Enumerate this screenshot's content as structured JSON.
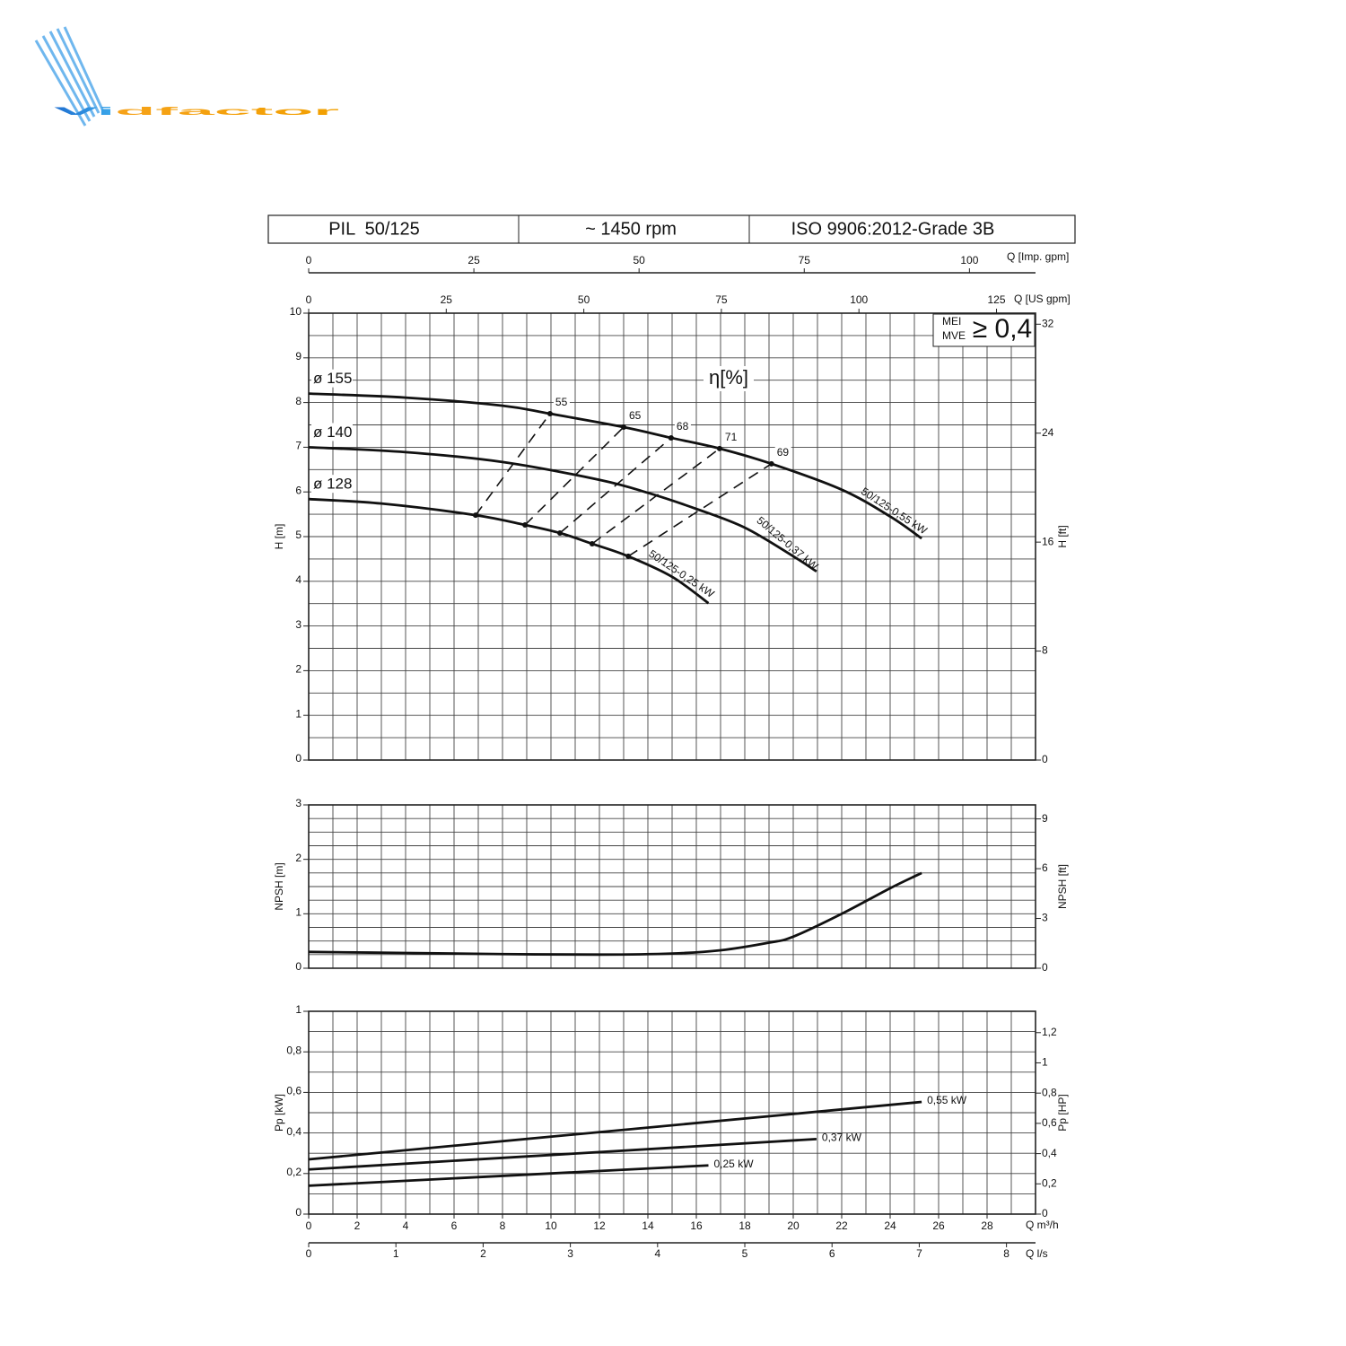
{
  "logo": "Vidfactor",
  "header": [
    "PIL  50/125",
    "~ 1450 rpm",
    "ISO 9906:2012-Grade 3B"
  ],
  "mei": {
    "labels": [
      "MEI",
      "MVE"
    ],
    "value": "≥ 0,4"
  },
  "flow_axes": [
    {
      "label": "Q [Imp. gpm]",
      "lim": [
        0,
        110.0
      ],
      "ticks": [
        0,
        25,
        50,
        75,
        100
      ]
    },
    {
      "label": "Q [US gpm]",
      "lim": [
        0,
        132.09
      ],
      "ticks": [
        0,
        25,
        50,
        75,
        100,
        125
      ]
    },
    {
      "label": "Q l/s",
      "lim": [
        0,
        8.333
      ],
      "ticks": [
        0,
        1,
        2,
        3,
        4,
        5,
        6,
        7,
        8
      ]
    }
  ],
  "chart_data": [
    {
      "type": "line",
      "ylabel": "H [m]",
      "y2label": "H [ft]",
      "xlim": [
        0,
        30
      ],
      "ylim": [
        0,
        10
      ],
      "yticks": [
        0,
        1,
        2,
        3,
        4,
        5,
        6,
        7,
        8,
        9,
        10
      ],
      "y2lim": [
        0,
        32.81
      ],
      "y2ticks": [
        0,
        8,
        16,
        24,
        32
      ],
      "xgrid": [
        0,
        1,
        2,
        3,
        4,
        5,
        6,
        7,
        8,
        9,
        10,
        11,
        12,
        13,
        14,
        15,
        16,
        17,
        18,
        19,
        20,
        21,
        22,
        23,
        24,
        25,
        26,
        27,
        28,
        29,
        30
      ],
      "ygrid": [
        0,
        0.5,
        1,
        1.5,
        2,
        2.5,
        3,
        3.5,
        4,
        4.5,
        5,
        5.5,
        6,
        6.5,
        7,
        7.5,
        8,
        8.5,
        9,
        9.5,
        10
      ],
      "series": [
        {
          "name": "50/125-0,55 kW",
          "diameter": "ø 155",
          "color": "#111111",
          "x": [
            0,
            4,
            8,
            9.96,
            13,
            14.96,
            16.96,
            19.1,
            22,
            24,
            25.3
          ],
          "values": [
            8.2,
            8.11,
            7.93,
            7.75,
            7.45,
            7.21,
            6.97,
            6.63,
            6.05,
            5.45,
            4.96
          ]
        },
        {
          "name": "50/125-0,37 kW",
          "diameter": "ø 140",
          "color": "#111111",
          "x": [
            0,
            4,
            8,
            12,
            14,
            16,
            18,
            20,
            20.96
          ],
          "values": [
            7.0,
            6.89,
            6.67,
            6.27,
            5.98,
            5.62,
            5.2,
            4.56,
            4.22
          ]
        },
        {
          "name": "50/125-0,25 kW",
          "diameter": "ø 128",
          "color": "#111111",
          "x": [
            0,
            3,
            6.89,
            8.93,
            10.37,
            11.7,
            13.19,
            15,
            16.5
          ],
          "values": [
            5.84,
            5.74,
            5.48,
            5.26,
            5.08,
            4.84,
            4.56,
            4.1,
            3.51
          ]
        }
      ],
      "efficiency_label": "η[%]",
      "efficiency_lines": [
        {
          "value": 55,
          "x": [
            6.89,
            9.96
          ],
          "values": [
            5.48,
            7.75
          ]
        },
        {
          "value": 65,
          "x": [
            8.93,
            13.0
          ],
          "values": [
            5.26,
            7.45
          ]
        },
        {
          "value": 68,
          "x": [
            10.37,
            14.96
          ],
          "values": [
            5.08,
            7.21
          ]
        },
        {
          "value": 71,
          "x": [
            11.7,
            16.96
          ],
          "values": [
            4.84,
            6.97
          ]
        },
        {
          "value": 69,
          "x": [
            13.19,
            19.1
          ],
          "values": [
            4.56,
            6.63
          ]
        }
      ]
    },
    {
      "type": "line",
      "ylabel": "NPSH [m]",
      "y2label": "NPSH [ft]",
      "xlim": [
        0,
        30
      ],
      "ylim": [
        0,
        3
      ],
      "yticks": [
        0,
        1,
        2,
        3
      ],
      "y2lim": [
        0,
        9.843
      ],
      "y2ticks": [
        0,
        3,
        6,
        9
      ],
      "xgrid": [
        0,
        1,
        2,
        3,
        4,
        5,
        6,
        7,
        8,
        9,
        10,
        11,
        12,
        13,
        14,
        15,
        16,
        17,
        18,
        19,
        20,
        21,
        22,
        23,
        24,
        25,
        26,
        27,
        28,
        29,
        30
      ],
      "ygrid": [
        0,
        0.25,
        0.5,
        0.75,
        1,
        1.25,
        1.5,
        1.75,
        2,
        2.25,
        2.5,
        2.75,
        3
      ],
      "series": [
        {
          "color": "#111111",
          "x": [
            0,
            4,
            8,
            12,
            15,
            17,
            19,
            20,
            22,
            24,
            25.3
          ],
          "values": [
            0.3,
            0.28,
            0.26,
            0.25,
            0.27,
            0.33,
            0.47,
            0.58,
            1.0,
            1.47,
            1.75
          ]
        }
      ]
    },
    {
      "type": "line",
      "ylabel": "Pp [kW]",
      "y2label": "Pp [HP]",
      "xlabel": "Q m³/h",
      "xlim": [
        0,
        30
      ],
      "xticks": [
        0,
        2,
        4,
        6,
        8,
        10,
        12,
        14,
        16,
        18,
        20,
        22,
        24,
        26,
        28
      ],
      "ylim": [
        0,
        1
      ],
      "yticks": [
        0,
        {
          "value": 0.2,
          "label": "0,2"
        },
        {
          "value": 0.4,
          "label": "0,4"
        },
        {
          "value": 0.6,
          "label": "0,6"
        },
        {
          "value": 0.8,
          "label": "0,8"
        },
        1
      ],
      "y2lim": [
        0,
        1.341
      ],
      "y2ticks": [
        0,
        {
          "value": 0.2,
          "label": "0,2"
        },
        {
          "value": 0.4,
          "label": "0,4"
        },
        {
          "value": 0.6,
          "label": "0,6"
        },
        {
          "value": 0.8,
          "label": "0,8"
        },
        1,
        {
          "value": 1.2,
          "label": "1,2"
        }
      ],
      "xgrid": [
        0,
        1,
        2,
        3,
        4,
        5,
        6,
        7,
        8,
        9,
        10,
        11,
        12,
        13,
        14,
        15,
        16,
        17,
        18,
        19,
        20,
        21,
        22,
        23,
        24,
        25,
        26,
        27,
        28,
        29,
        30
      ],
      "ygrid": [
        0,
        0.1,
        0.2,
        0.3,
        0.4,
        0.5,
        0.6,
        0.7,
        0.8,
        0.9,
        1
      ],
      "series": [
        {
          "name": "0,55 kW",
          "color": "#111111",
          "x": [
            0,
            25.3
          ],
          "values": [
            0.27,
            0.553
          ]
        },
        {
          "name": "0,37 kW",
          "color": "#111111",
          "x": [
            0,
            20.96
          ],
          "values": [
            0.22,
            0.37
          ]
        },
        {
          "name": "0,25 kW",
          "color": "#111111",
          "x": [
            0,
            16.5
          ],
          "values": [
            0.14,
            0.24
          ]
        }
      ]
    }
  ]
}
